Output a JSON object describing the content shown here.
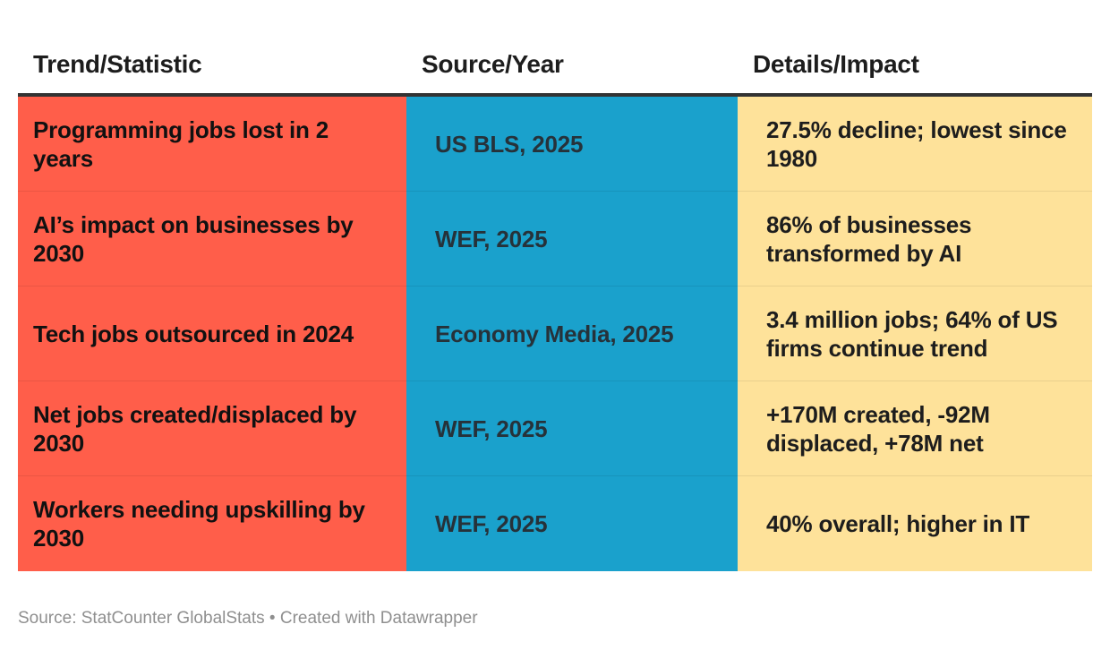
{
  "chart_data": {
    "type": "table",
    "colors": {
      "col1_bg": "#ff5e4a",
      "col2_bg": "#1aa1cc",
      "col3_bg": "#fee29a",
      "header_rule": "#333333"
    },
    "columns": [
      "Trend/Statistic",
      "Source/Year",
      "Details/Impact"
    ],
    "rows": [
      {
        "trend": "Programming jobs lost in 2 years",
        "source": "US BLS, 2025",
        "details": "27.5% decline; lowest since 1980"
      },
      {
        "trend": "AI’s impact on businesses by 2030",
        "source": "WEF, 2025",
        "details": "86% of businesses transformed by AI"
      },
      {
        "trend": "Tech jobs outsourced in 2024",
        "source": "Economy Media, 2025",
        "details": "3.4 million jobs; 64% of US firms continue trend"
      },
      {
        "trend": "Net jobs created/displaced by 2030",
        "source": "WEF, 2025",
        "details": "+170M created, -92M displaced, +78M net"
      },
      {
        "trend": "Workers needing upskilling by 2030",
        "source": "WEF, 2025",
        "details": "40% overall; higher in IT"
      }
    ]
  },
  "footer": {
    "text": "Source: StatCounter GlobalStats • Created with Datawrapper"
  }
}
